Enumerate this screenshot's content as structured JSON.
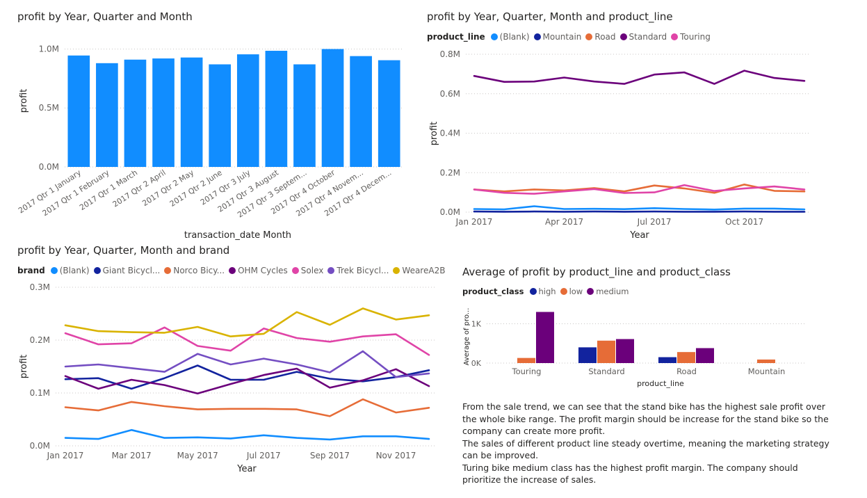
{
  "colors": {
    "bar": "#118DFF",
    "grid": "#c8c6c4",
    "axis_text": "#605e5c",
    "label_text": "#252423",
    "high": "#12239E",
    "low": "#E66C37",
    "medium": "#6B007B"
  },
  "notes": [
    "From the sale trend, we can see that the stand bike has the highest sale profit over the whole bike range. The profit margin should be increase for the stand bike so the company can create more profit.",
    "The sales of different product line steady overtime, meaning the marketing strategy can be improved.",
    "Turing bike medium class has the highest profit margin. The company should prioritize the increase of sales."
  ],
  "chart_data": [
    {
      "id": "c1",
      "type": "bar",
      "title": "profit by Year, Quarter and Month",
      "xlabel": "transaction_date Month",
      "ylabel": "profit",
      "ylim": [
        0,
        1050000
      ],
      "yticks": [
        0,
        500000,
        1000000
      ],
      "ytick_labels": [
        "0.0M",
        "0.5M",
        "1.0M"
      ],
      "grid": true,
      "categories": [
        "2017 Qtr 1 January",
        "2017 Qtr 1 February",
        "2017 Qtr 1 March",
        "2017 Qtr 2 April",
        "2017 Qtr 2 May",
        "2017 Qtr 2 June",
        "2017 Qtr 3 July",
        "2017 Qtr 3 August",
        "2017 Qtr 3 Septem...",
        "2017 Qtr 4 October",
        "2017 Qtr 4 Novem...",
        "2017 Qtr 4 Decem..."
      ],
      "values": [
        945000,
        880000,
        910000,
        920000,
        928000,
        870000,
        955000,
        985000,
        870000,
        1000000,
        940000,
        905000
      ]
    },
    {
      "id": "c2",
      "type": "line",
      "title": "profit by Year, Quarter, Month and product_line",
      "legend_title": "product_line",
      "legend_placement": "top-left",
      "xlabel": "Year",
      "ylabel": "profit",
      "ylim": [
        0,
        800000
      ],
      "yticks": [
        0,
        200000,
        400000,
        600000,
        800000
      ],
      "ytick_labels": [
        "0.0M",
        "0.2M",
        "0.4M",
        "0.6M",
        "0.8M"
      ],
      "grid": true,
      "x": [
        "Jan 2017",
        "Feb 2017",
        "Mar 2017",
        "Apr 2017",
        "May 2017",
        "Jun 2017",
        "Jul 2017",
        "Aug 2017",
        "Sep 2017",
        "Oct 2017",
        "Nov 2017",
        "Dec 2017"
      ],
      "xtick_positions": [
        0,
        3,
        6,
        9
      ],
      "xtick_labels": [
        "Jan 2017",
        "Apr 2017",
        "Jul 2017",
        "Oct 2017"
      ],
      "series": [
        {
          "name": "(Blank)",
          "color": "#118DFF",
          "values": [
            16000,
            14000,
            30000,
            16000,
            17000,
            15000,
            20000,
            16000,
            13000,
            18000,
            18000,
            14000
          ]
        },
        {
          "name": "Mountain",
          "color": "#12239E",
          "values": [
            3000,
            2000,
            3000,
            2000,
            3000,
            2000,
            3000,
            2000,
            2000,
            3000,
            2000,
            2000
          ]
        },
        {
          "name": "Road",
          "color": "#E66C37",
          "values": [
            115000,
            105000,
            115000,
            110000,
            122000,
            105000,
            135000,
            120000,
            98000,
            140000,
            108000,
            105000
          ]
        },
        {
          "name": "Standard",
          "color": "#6B007B",
          "values": [
            690000,
            660000,
            662000,
            682000,
            662000,
            650000,
            697000,
            708000,
            650000,
            717000,
            680000,
            665000
          ]
        },
        {
          "name": "Touring",
          "color": "#E044A7",
          "values": [
            115000,
            98000,
            93000,
            105000,
            117000,
            97000,
            100000,
            137000,
            107000,
            120000,
            130000,
            115000
          ]
        }
      ]
    },
    {
      "id": "c3",
      "type": "line",
      "title": "profit by Year, Quarter, Month and brand",
      "legend_title": "brand",
      "legend_placement": "top-left",
      "xlabel": "Year",
      "ylabel": "profit",
      "ylim": [
        0,
        300000
      ],
      "yticks": [
        0,
        100000,
        200000,
        300000
      ],
      "ytick_labels": [
        "0.0M",
        "0.1M",
        "0.2M",
        "0.3M"
      ],
      "grid": true,
      "x": [
        "Jan 2017",
        "Feb 2017",
        "Mar 2017",
        "Apr 2017",
        "May 2017",
        "Jun 2017",
        "Jul 2017",
        "Aug 2017",
        "Sep 2017",
        "Oct 2017",
        "Nov 2017",
        "Dec 2017"
      ],
      "xtick_positions": [
        0,
        2,
        4,
        6,
        8,
        10
      ],
      "xtick_labels": [
        "Jan 2017",
        "Mar 2017",
        "May 2017",
        "Jul 2017",
        "Sep 2017",
        "Nov 2017"
      ],
      "series": [
        {
          "name": "(Blank)",
          "color": "#118DFF",
          "values": [
            15000,
            13000,
            30000,
            15000,
            16000,
            14000,
            20000,
            15000,
            12000,
            18000,
            18000,
            13000
          ]
        },
        {
          "name": "Giant Bicycl...",
          "color": "#12239E",
          "values": [
            126000,
            128000,
            108000,
            128000,
            152000,
            125000,
            125000,
            140000,
            127000,
            122000,
            130000,
            143000
          ]
        },
        {
          "name": "Norco Bicy...",
          "color": "#E66C37",
          "values": [
            73000,
            67000,
            83000,
            75000,
            69000,
            70000,
            70000,
            69000,
            56000,
            88000,
            63000,
            72000
          ]
        },
        {
          "name": "OHM Cycles",
          "color": "#6B007B",
          "values": [
            132000,
            108000,
            125000,
            115000,
            99000,
            117000,
            134000,
            146000,
            110000,
            124000,
            145000,
            113000
          ]
        },
        {
          "name": "Solex",
          "color": "#E044A7",
          "values": [
            213000,
            192000,
            194000,
            224000,
            189000,
            180000,
            222000,
            204000,
            197000,
            207000,
            211000,
            172000
          ]
        },
        {
          "name": "Trek Bicycl...",
          "color": "#744EC2",
          "values": [
            150000,
            154000,
            147000,
            140000,
            174000,
            154000,
            165000,
            154000,
            139000,
            179000,
            130000,
            137000
          ]
        },
        {
          "name": "WeareA2B",
          "color": "#D9B300",
          "values": [
            228000,
            217000,
            215000,
            214000,
            225000,
            207000,
            212000,
            253000,
            229000,
            260000,
            239000,
            247000
          ]
        }
      ]
    },
    {
      "id": "c4",
      "type": "bar",
      "title": "Average of profit by product_line and product_class",
      "legend_title": "product_class",
      "legend_placement": "top-left",
      "xlabel": "product_line",
      "ylabel": "Average of pro...",
      "ylim": [
        0,
        1450
      ],
      "yticks": [
        0,
        1000
      ],
      "ytick_labels": [
        "0K",
        "1K"
      ],
      "grid": true,
      "categories": [
        "Touring",
        "Standard",
        "Road",
        "Mountain"
      ],
      "series": [
        {
          "name": "high",
          "color": "#12239E",
          "values": [
            0,
            400,
            150,
            0
          ]
        },
        {
          "name": "low",
          "color": "#E66C37",
          "values": [
            130,
            570,
            280,
            90
          ]
        },
        {
          "name": "medium",
          "color": "#6B007B",
          "values": [
            1300,
            610,
            380,
            0
          ]
        }
      ]
    }
  ]
}
